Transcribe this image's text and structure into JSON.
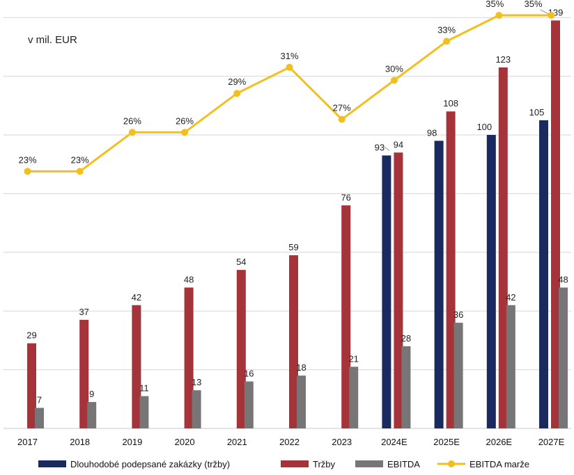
{
  "chart_data": {
    "type": "bar",
    "unit_label": "v mil. EUR",
    "categories": [
      "2017",
      "2018",
      "2019",
      "2020",
      "2021",
      "2022",
      "2023",
      "2024E",
      "2025E",
      "2026E",
      "2027E"
    ],
    "series": [
      {
        "name": "Dlouhodobé podepsané zakázky (tržby)",
        "color": "#1b2a5e",
        "kind": "bar",
        "values": [
          null,
          null,
          null,
          null,
          null,
          null,
          null,
          93,
          98,
          100,
          105
        ]
      },
      {
        "name": "Tržby",
        "color": "#a5333a",
        "kind": "bar",
        "values": [
          29,
          37,
          42,
          48,
          54,
          59,
          76,
          94,
          108,
          123,
          139
        ]
      },
      {
        "name": "EBITDA",
        "color": "#777575",
        "kind": "bar",
        "values": [
          7,
          9,
          11,
          13,
          16,
          18,
          21,
          28,
          36,
          42,
          48
        ]
      },
      {
        "name": "EBITDA marže",
        "color": "#f2bf1f",
        "kind": "line",
        "values": [
          23,
          23,
          26,
          26,
          29,
          31,
          27,
          30,
          33,
          35,
          35
        ],
        "labels": [
          "23%",
          "23%",
          "26%",
          "26%",
          "29%",
          "31%",
          "27%",
          "30%",
          "33%",
          "35%",
          "35%"
        ]
      }
    ],
    "bar_axis": {
      "ylim": [
        0,
        140
      ]
    },
    "grid": true
  }
}
